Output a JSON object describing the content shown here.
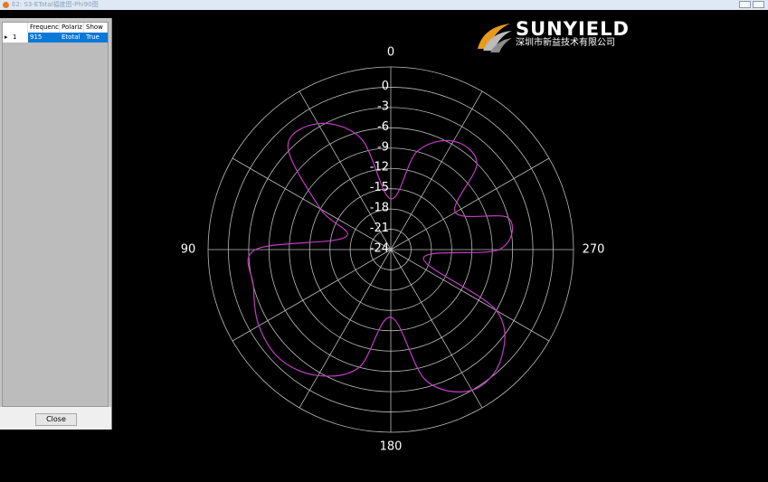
{
  "window": {
    "title": "E2: S3-ETotal幅度图-Phi90图"
  },
  "table": {
    "columns": [
      "Frequenc",
      "Polariz",
      "Show"
    ],
    "row_numbers": [
      "1"
    ],
    "rows": [
      [
        "915",
        "Etotal",
        "True"
      ]
    ]
  },
  "close_button": "Close",
  "logo": {
    "brand": "SUNYIELD",
    "company": "深圳市新益技术有限公司"
  },
  "chart_data": {
    "type": "polar",
    "color": "#c23cc2",
    "zero": "top",
    "direction": "counterclockwise",
    "rlim": [
      -24,
      3
    ],
    "rticks": [
      0,
      -3,
      -6,
      -9,
      -12,
      -15,
      -18,
      -21,
      -24
    ],
    "thetaticks": [
      0,
      90,
      180,
      270
    ],
    "thetagrid": [
      0,
      30,
      60,
      90,
      120,
      150,
      180,
      210,
      240,
      270,
      300,
      330
    ],
    "theta": [
      0,
      15,
      30,
      45,
      60,
      75,
      90,
      105,
      120,
      135,
      150,
      165,
      180,
      195,
      210,
      225,
      240,
      255,
      270,
      285,
      300,
      315,
      330,
      345
    ],
    "r": [
      -16.5,
      -7,
      -2.5,
      -2.5,
      -12,
      -17,
      -4,
      -3,
      -1.5,
      -1,
      -2.5,
      -6,
      -14,
      -4,
      0,
      -1,
      -6,
      -19,
      -8,
      -6,
      -13,
      -6,
      -5.5,
      -9
    ]
  }
}
